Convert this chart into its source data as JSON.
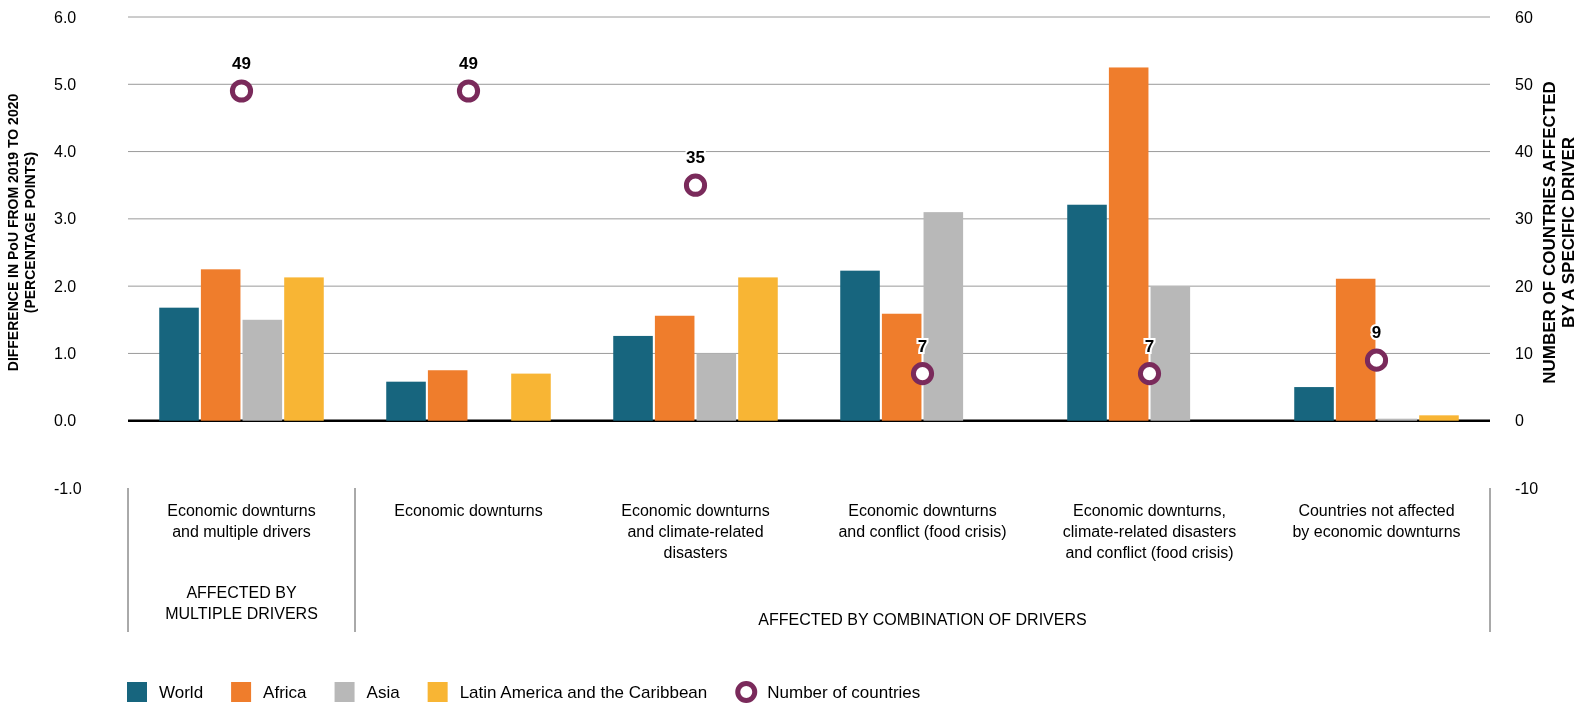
{
  "chart_data": {
    "type": "bar",
    "categories": [
      "Economic downturns and multiple drivers",
      "Economic downturns",
      "Economic downturns and climate-related disasters",
      "Economic downturns and conflict (food crisis)",
      "Economic downturns, climate-related disasters and conflict (food crisis)",
      "Countries not affected by economic downturns"
    ],
    "series": [
      {
        "name": "World",
        "color": "#17657e",
        "values": [
          1.68,
          0.58,
          1.26,
          2.23,
          3.21,
          0.5
        ]
      },
      {
        "name": "Africa",
        "color": "#ef7d2c",
        "values": [
          2.25,
          0.75,
          1.56,
          1.59,
          5.25,
          2.11
        ]
      },
      {
        "name": "Asia",
        "color": "#b8b8b8",
        "values": [
          1.5,
          null,
          1.0,
          3.1,
          2.0,
          0.03
        ]
      },
      {
        "name": "Latin America and the Caribbean",
        "color": "#f8b534",
        "values": [
          2.13,
          0.7,
          2.13,
          null,
          null,
          0.08
        ]
      },
      {
        "name": "Number of countries",
        "type": "scatter",
        "axis": "y2",
        "marker": "circle",
        "data_labels": true,
        "color": "#7a2a5b",
        "values": [
          49,
          49,
          35,
          7,
          7,
          9
        ]
      }
    ],
    "ylabel": "DIFFERENCE IN PoU FROM 2019 TO 2020 (PERCENTAGE POINTS)",
    "y2label": "NUMBER OF COUNTRIES AFFECTED BY A SPECIFIC DRIVER",
    "ylim": [
      -1,
      6
    ],
    "yticks": [
      {
        "value": -1,
        "label": "-1.0"
      },
      {
        "value": 0,
        "label": "0.0"
      },
      {
        "value": 1,
        "label": "1.0"
      },
      {
        "value": 2,
        "label": "2.0"
      },
      {
        "value": 3,
        "label": "3.0"
      },
      {
        "value": 4,
        "label": "4.0"
      },
      {
        "value": 5,
        "label": "5.0"
      },
      {
        "value": 6,
        "label": "6.0"
      }
    ],
    "y2lim": [
      -10,
      60
    ],
    "y2ticks": [
      -10,
      0,
      10,
      20,
      30,
      40,
      50,
      60
    ],
    "annotations": [
      "AFFECTED BY MULTIPLE DRIVERS",
      "AFFECTED BY COMBINATION OF DRIVERS"
    ],
    "grid": "y",
    "legend": "bottom left"
  }
}
